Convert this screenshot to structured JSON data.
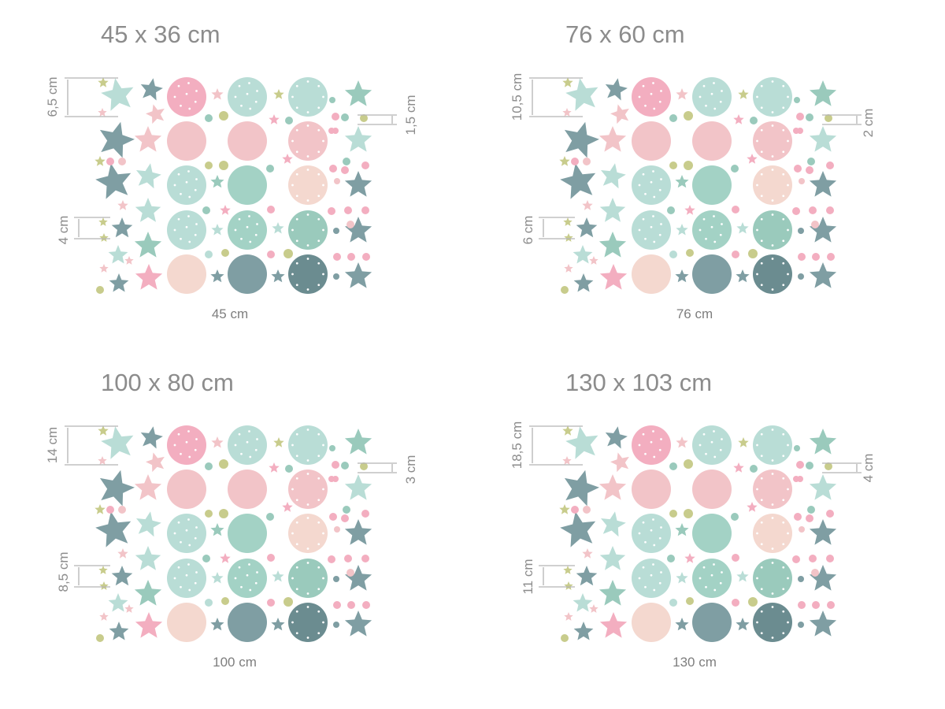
{
  "palette": {
    "pink": "#f3aec0",
    "light_pink": "#f2c4c8",
    "peach": "#f4d8cf",
    "mint": "#b9ddd6",
    "mint_mid": "#a3d2c5",
    "sage": "#9acabc",
    "slate": "#7f9ea3",
    "slate_dark": "#6b8c90",
    "olive": "#c8cc8c",
    "text": "#8c8c8c"
  },
  "panels": [
    {
      "title": "45 x 36 cm",
      "width_label": "45 cm",
      "big_star_label": "6,5 cm",
      "small_star_label": "4 cm",
      "dot_label": "1,5 cm"
    },
    {
      "title": "76 x 60 cm",
      "width_label": "76 cm",
      "big_star_label": "10,5 cm",
      "small_star_label": "6 cm",
      "dot_label": "2 cm"
    },
    {
      "title": "100 x 80 cm",
      "width_label": "100 cm",
      "big_star_label": "14 cm",
      "small_star_label": "8,5 cm",
      "dot_label": "3 cm"
    },
    {
      "title": "130 x 103 cm",
      "width_label": "130 cm",
      "big_star_label": "18,5 cm",
      "small_star_label": "11 cm",
      "dot_label": "4 cm"
    }
  ]
}
